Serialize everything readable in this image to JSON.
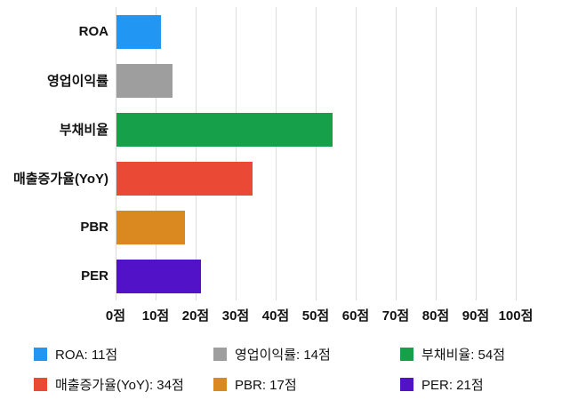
{
  "chart_data": {
    "type": "bar",
    "orientation": "horizontal",
    "title": "",
    "unit": "점",
    "categories": [
      "ROA",
      "영업이익률",
      "부채비율",
      "매출증가율(YoY)",
      "PBR",
      "PER"
    ],
    "values": [
      11,
      14,
      54,
      34,
      17,
      21
    ],
    "colors": [
      "#2196f3",
      "#9e9e9e",
      "#17a04a",
      "#ea4a35",
      "#d9891f",
      "#5213c8"
    ],
    "xlim": [
      0,
      100
    ],
    "x_ticks": [
      "0점",
      "10점",
      "20점",
      "30점",
      "40점",
      "50점",
      "60점",
      "70점",
      "80점",
      "90점",
      "100점"
    ],
    "grid": true,
    "legend_position": "bottom",
    "legend": [
      {
        "label": "ROA: 11점",
        "color": "#2196f3"
      },
      {
        "label": "영업이익률: 14점",
        "color": "#9e9e9e"
      },
      {
        "label": "부채비율: 54점",
        "color": "#17a04a"
      },
      {
        "label": "매출증가율(YoY): 34점",
        "color": "#ea4a35"
      },
      {
        "label": "PBR: 17점",
        "color": "#d9891f"
      },
      {
        "label": "PER: 21점",
        "color": "#5213c8"
      }
    ]
  }
}
